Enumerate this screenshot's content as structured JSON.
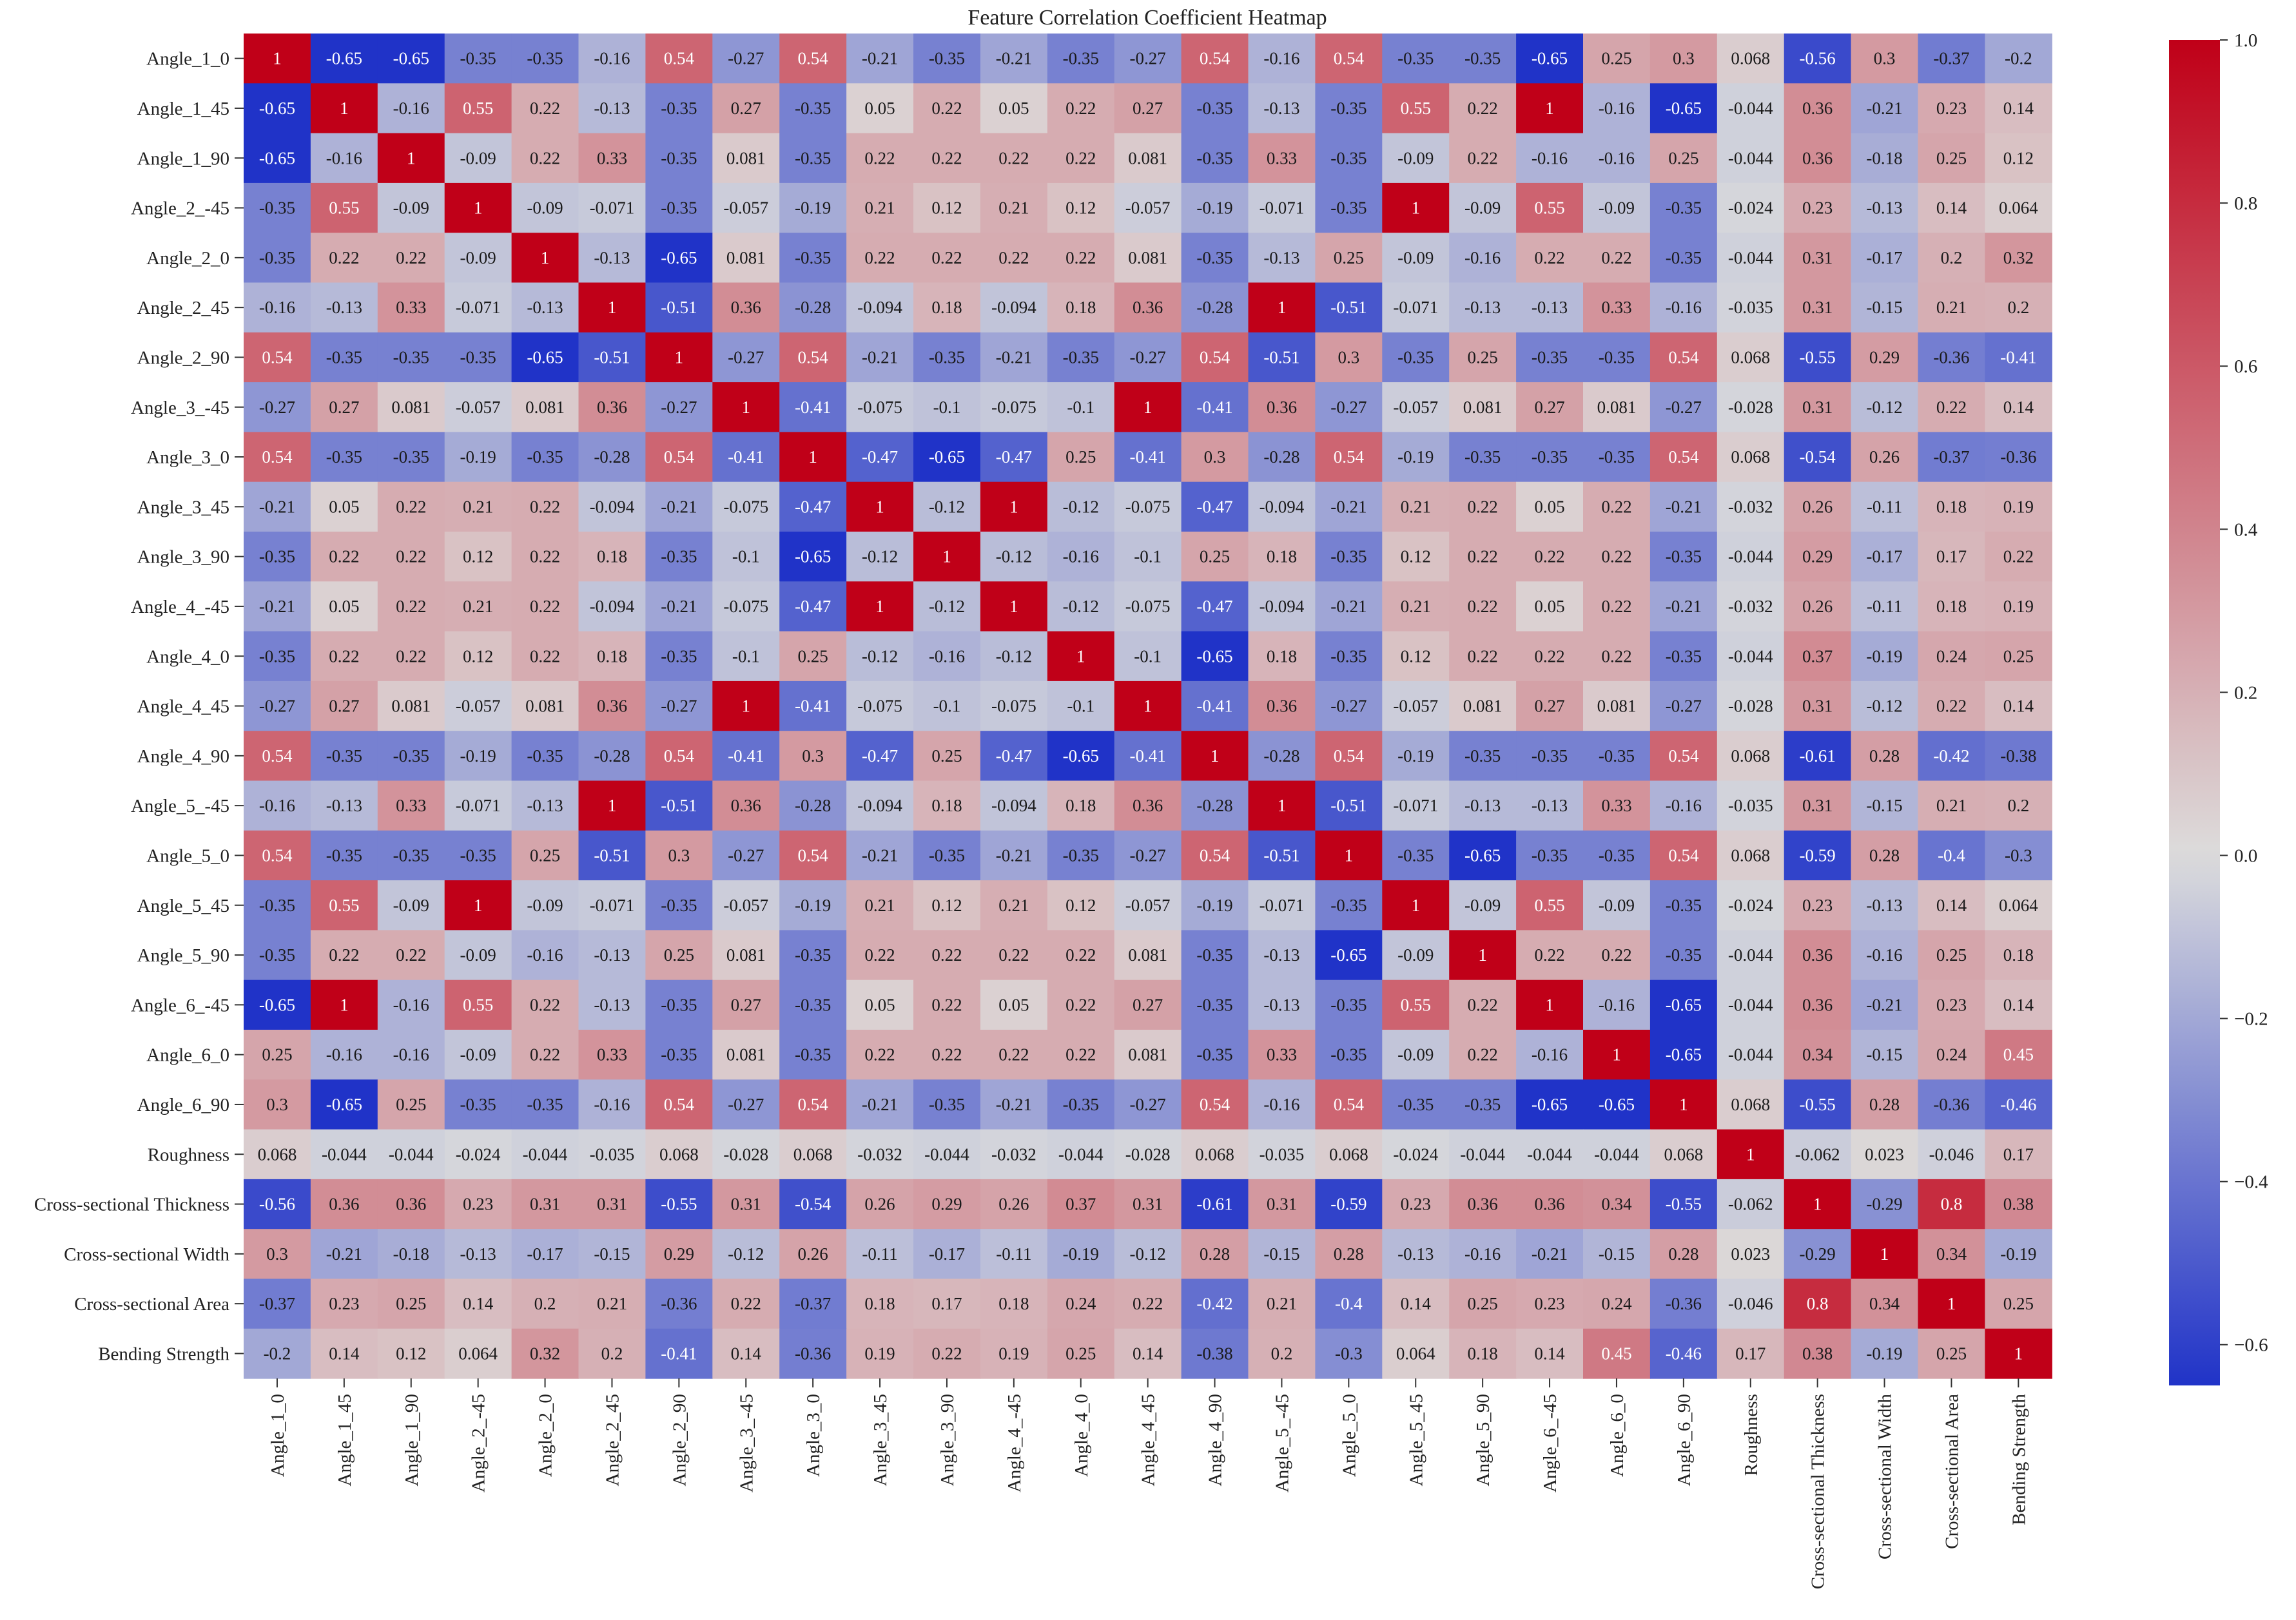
{
  "chart_data": {
    "type": "heatmap",
    "title": "Feature Correlation Coefficient Heatmap",
    "xlabel": "",
    "ylabel": "",
    "labels": [
      "Angle_1_0",
      "Angle_1_45",
      "Angle_1_90",
      "Angle_2_-45",
      "Angle_2_0",
      "Angle_2_45",
      "Angle_2_90",
      "Angle_3_-45",
      "Angle_3_0",
      "Angle_3_45",
      "Angle_3_90",
      "Angle_4_-45",
      "Angle_4_0",
      "Angle_4_45",
      "Angle_4_90",
      "Angle_5_-45",
      "Angle_5_0",
      "Angle_5_45",
      "Angle_5_90",
      "Angle_6_-45",
      "Angle_6_0",
      "Angle_6_90",
      "Roughness",
      "Cross-sectional Thickness",
      "Cross-sectional Width",
      "Cross-sectional Area",
      "Bending Strength"
    ],
    "matrix": [
      [
        "1",
        "-0.65",
        "-0.65",
        "-0.35",
        "-0.35",
        "-0.16",
        "0.54",
        "-0.27",
        "0.54",
        "-0.21",
        "-0.35",
        "-0.21",
        "-0.35",
        "-0.27",
        "0.54",
        "-0.16",
        "0.54",
        "-0.35",
        "-0.35",
        "-0.65",
        "0.25",
        "0.3",
        "0.068",
        "-0.56",
        "0.3",
        "-0.37",
        "-0.2"
      ],
      [
        "-0.65",
        "1",
        "-0.16",
        "0.55",
        "0.22",
        "-0.13",
        "-0.35",
        "0.27",
        "-0.35",
        "0.05",
        "0.22",
        "0.05",
        "0.22",
        "0.27",
        "-0.35",
        "-0.13",
        "-0.35",
        "0.55",
        "0.22",
        "1",
        "-0.16",
        "-0.65",
        "-0.044",
        "0.36",
        "-0.21",
        "0.23",
        "0.14"
      ],
      [
        "-0.65",
        "-0.16",
        "1",
        "-0.09",
        "0.22",
        "0.33",
        "-0.35",
        "0.081",
        "-0.35",
        "0.22",
        "0.22",
        "0.22",
        "0.22",
        "0.081",
        "-0.35",
        "0.33",
        "-0.35",
        "-0.09",
        "0.22",
        "-0.16",
        "-0.16",
        "0.25",
        "-0.044",
        "0.36",
        "-0.18",
        "0.25",
        "0.12"
      ],
      [
        "-0.35",
        "0.55",
        "-0.09",
        "1",
        "-0.09",
        "-0.071",
        "-0.35",
        "-0.057",
        "-0.19",
        "0.21",
        "0.12",
        "0.21",
        "0.12",
        "-0.057",
        "-0.19",
        "-0.071",
        "-0.35",
        "1",
        "-0.09",
        "0.55",
        "-0.09",
        "-0.35",
        "-0.024",
        "0.23",
        "-0.13",
        "0.14",
        "0.064"
      ],
      [
        "-0.35",
        "0.22",
        "0.22",
        "-0.09",
        "1",
        "-0.13",
        "-0.65",
        "0.081",
        "-0.35",
        "0.22",
        "0.22",
        "0.22",
        "0.22",
        "0.081",
        "-0.35",
        "-0.13",
        "0.25",
        "-0.09",
        "-0.16",
        "0.22",
        "0.22",
        "-0.35",
        "-0.044",
        "0.31",
        "-0.17",
        "0.2",
        "0.32"
      ],
      [
        "-0.16",
        "-0.13",
        "0.33",
        "-0.071",
        "-0.13",
        "1",
        "-0.51",
        "0.36",
        "-0.28",
        "-0.094",
        "0.18",
        "-0.094",
        "0.18",
        "0.36",
        "-0.28",
        "1",
        "-0.51",
        "-0.071",
        "-0.13",
        "-0.13",
        "0.33",
        "-0.16",
        "-0.035",
        "0.31",
        "-0.15",
        "0.21",
        "0.2"
      ],
      [
        "0.54",
        "-0.35",
        "-0.35",
        "-0.35",
        "-0.65",
        "-0.51",
        "1",
        "-0.27",
        "0.54",
        "-0.21",
        "-0.35",
        "-0.21",
        "-0.35",
        "-0.27",
        "0.54",
        "-0.51",
        "0.3",
        "-0.35",
        "0.25",
        "-0.35",
        "-0.35",
        "0.54",
        "0.068",
        "-0.55",
        "0.29",
        "-0.36",
        "-0.41"
      ],
      [
        "-0.27",
        "0.27",
        "0.081",
        "-0.057",
        "0.081",
        "0.36",
        "-0.27",
        "1",
        "-0.41",
        "-0.075",
        "-0.1",
        "-0.075",
        "-0.1",
        "1",
        "-0.41",
        "0.36",
        "-0.27",
        "-0.057",
        "0.081",
        "0.27",
        "0.081",
        "-0.27",
        "-0.028",
        "0.31",
        "-0.12",
        "0.22",
        "0.14"
      ],
      [
        "0.54",
        "-0.35",
        "-0.35",
        "-0.19",
        "-0.35",
        "-0.28",
        "0.54",
        "-0.41",
        "1",
        "-0.47",
        "-0.65",
        "-0.47",
        "0.25",
        "-0.41",
        "0.3",
        "-0.28",
        "0.54",
        "-0.19",
        "-0.35",
        "-0.35",
        "-0.35",
        "0.54",
        "0.068",
        "-0.54",
        "0.26",
        "-0.37",
        "-0.36"
      ],
      [
        "-0.21",
        "0.05",
        "0.22",
        "0.21",
        "0.22",
        "-0.094",
        "-0.21",
        "-0.075",
        "-0.47",
        "1",
        "-0.12",
        "1",
        "-0.12",
        "-0.075",
        "-0.47",
        "-0.094",
        "-0.21",
        "0.21",
        "0.22",
        "0.05",
        "0.22",
        "-0.21",
        "-0.032",
        "0.26",
        "-0.11",
        "0.18",
        "0.19"
      ],
      [
        "-0.35",
        "0.22",
        "0.22",
        "0.12",
        "0.22",
        "0.18",
        "-0.35",
        "-0.1",
        "-0.65",
        "-0.12",
        "1",
        "-0.12",
        "-0.16",
        "-0.1",
        "0.25",
        "0.18",
        "-0.35",
        "0.12",
        "0.22",
        "0.22",
        "0.22",
        "-0.35",
        "-0.044",
        "0.29",
        "-0.17",
        "0.17",
        "0.22"
      ],
      [
        "-0.21",
        "0.05",
        "0.22",
        "0.21",
        "0.22",
        "-0.094",
        "-0.21",
        "-0.075",
        "-0.47",
        "1",
        "-0.12",
        "1",
        "-0.12",
        "-0.075",
        "-0.47",
        "-0.094",
        "-0.21",
        "0.21",
        "0.22",
        "0.05",
        "0.22",
        "-0.21",
        "-0.032",
        "0.26",
        "-0.11",
        "0.18",
        "0.19"
      ],
      [
        "-0.35",
        "0.22",
        "0.22",
        "0.12",
        "0.22",
        "0.18",
        "-0.35",
        "-0.1",
        "0.25",
        "-0.12",
        "-0.16",
        "-0.12",
        "1",
        "-0.1",
        "-0.65",
        "0.18",
        "-0.35",
        "0.12",
        "0.22",
        "0.22",
        "0.22",
        "-0.35",
        "-0.044",
        "0.37",
        "-0.19",
        "0.24",
        "0.25"
      ],
      [
        "-0.27",
        "0.27",
        "0.081",
        "-0.057",
        "0.081",
        "0.36",
        "-0.27",
        "1",
        "-0.41",
        "-0.075",
        "-0.1",
        "-0.075",
        "-0.1",
        "1",
        "-0.41",
        "0.36",
        "-0.27",
        "-0.057",
        "0.081",
        "0.27",
        "0.081",
        "-0.27",
        "-0.028",
        "0.31",
        "-0.12",
        "0.22",
        "0.14"
      ],
      [
        "0.54",
        "-0.35",
        "-0.35",
        "-0.19",
        "-0.35",
        "-0.28",
        "0.54",
        "-0.41",
        "0.3",
        "-0.47",
        "0.25",
        "-0.47",
        "-0.65",
        "-0.41",
        "1",
        "-0.28",
        "0.54",
        "-0.19",
        "-0.35",
        "-0.35",
        "-0.35",
        "0.54",
        "0.068",
        "-0.61",
        "0.28",
        "-0.42",
        "-0.38"
      ],
      [
        "-0.16",
        "-0.13",
        "0.33",
        "-0.071",
        "-0.13",
        "1",
        "-0.51",
        "0.36",
        "-0.28",
        "-0.094",
        "0.18",
        "-0.094",
        "0.18",
        "0.36",
        "-0.28",
        "1",
        "-0.51",
        "-0.071",
        "-0.13",
        "-0.13",
        "0.33",
        "-0.16",
        "-0.035",
        "0.31",
        "-0.15",
        "0.21",
        "0.2"
      ],
      [
        "0.54",
        "-0.35",
        "-0.35",
        "-0.35",
        "0.25",
        "-0.51",
        "0.3",
        "-0.27",
        "0.54",
        "-0.21",
        "-0.35",
        "-0.21",
        "-0.35",
        "-0.27",
        "0.54",
        "-0.51",
        "1",
        "-0.35",
        "-0.65",
        "-0.35",
        "-0.35",
        "0.54",
        "0.068",
        "-0.59",
        "0.28",
        "-0.4",
        "-0.3"
      ],
      [
        "-0.35",
        "0.55",
        "-0.09",
        "1",
        "-0.09",
        "-0.071",
        "-0.35",
        "-0.057",
        "-0.19",
        "0.21",
        "0.12",
        "0.21",
        "0.12",
        "-0.057",
        "-0.19",
        "-0.071",
        "-0.35",
        "1",
        "-0.09",
        "0.55",
        "-0.09",
        "-0.35",
        "-0.024",
        "0.23",
        "-0.13",
        "0.14",
        "0.064"
      ],
      [
        "-0.35",
        "0.22",
        "0.22",
        "-0.09",
        "-0.16",
        "-0.13",
        "0.25",
        "0.081",
        "-0.35",
        "0.22",
        "0.22",
        "0.22",
        "0.22",
        "0.081",
        "-0.35",
        "-0.13",
        "-0.65",
        "-0.09",
        "1",
        "0.22",
        "0.22",
        "-0.35",
        "-0.044",
        "0.36",
        "-0.16",
        "0.25",
        "0.18"
      ],
      [
        "-0.65",
        "1",
        "-0.16",
        "0.55",
        "0.22",
        "-0.13",
        "-0.35",
        "0.27",
        "-0.35",
        "0.05",
        "0.22",
        "0.05",
        "0.22",
        "0.27",
        "-0.35",
        "-0.13",
        "-0.35",
        "0.55",
        "0.22",
        "1",
        "-0.16",
        "-0.65",
        "-0.044",
        "0.36",
        "-0.21",
        "0.23",
        "0.14"
      ],
      [
        "0.25",
        "-0.16",
        "-0.16",
        "-0.09",
        "0.22",
        "0.33",
        "-0.35",
        "0.081",
        "-0.35",
        "0.22",
        "0.22",
        "0.22",
        "0.22",
        "0.081",
        "-0.35",
        "0.33",
        "-0.35",
        "-0.09",
        "0.22",
        "-0.16",
        "1",
        "-0.65",
        "-0.044",
        "0.34",
        "-0.15",
        "0.24",
        "0.45"
      ],
      [
        "0.3",
        "-0.65",
        "0.25",
        "-0.35",
        "-0.35",
        "-0.16",
        "0.54",
        "-0.27",
        "0.54",
        "-0.21",
        "-0.35",
        "-0.21",
        "-0.35",
        "-0.27",
        "0.54",
        "-0.16",
        "0.54",
        "-0.35",
        "-0.35",
        "-0.65",
        "-0.65",
        "1",
        "0.068",
        "-0.55",
        "0.28",
        "-0.36",
        "-0.46"
      ],
      [
        "0.068",
        "-0.044",
        "-0.044",
        "-0.024",
        "-0.044",
        "-0.035",
        "0.068",
        "-0.028",
        "0.068",
        "-0.032",
        "-0.044",
        "-0.032",
        "-0.044",
        "-0.028",
        "0.068",
        "-0.035",
        "0.068",
        "-0.024",
        "-0.044",
        "-0.044",
        "-0.044",
        "0.068",
        "1",
        "-0.062",
        "0.023",
        "-0.046",
        "0.17"
      ],
      [
        "-0.56",
        "0.36",
        "0.36",
        "0.23",
        "0.31",
        "0.31",
        "-0.55",
        "0.31",
        "-0.54",
        "0.26",
        "0.29",
        "0.26",
        "0.37",
        "0.31",
        "-0.61",
        "0.31",
        "-0.59",
        "0.23",
        "0.36",
        "0.36",
        "0.34",
        "-0.55",
        "-0.062",
        "1",
        "-0.29",
        "0.8",
        "0.38"
      ],
      [
        "0.3",
        "-0.21",
        "-0.18",
        "-0.13",
        "-0.17",
        "-0.15",
        "0.29",
        "-0.12",
        "0.26",
        "-0.11",
        "-0.17",
        "-0.11",
        "-0.19",
        "-0.12",
        "0.28",
        "-0.15",
        "0.28",
        "-0.13",
        "-0.16",
        "-0.21",
        "-0.15",
        "0.28",
        "0.023",
        "-0.29",
        "1",
        "0.34",
        "-0.19"
      ],
      [
        "-0.37",
        "0.23",
        "0.25",
        "0.14",
        "0.2",
        "0.21",
        "-0.36",
        "0.22",
        "-0.37",
        "0.18",
        "0.17",
        "0.18",
        "0.24",
        "0.22",
        "-0.42",
        "0.21",
        "-0.4",
        "0.14",
        "0.25",
        "0.23",
        "0.24",
        "-0.36",
        "-0.046",
        "0.8",
        "0.34",
        "1",
        "0.25"
      ],
      [
        "-0.2",
        "0.14",
        "0.12",
        "0.064",
        "0.32",
        "0.2",
        "-0.41",
        "0.14",
        "-0.36",
        "0.19",
        "0.22",
        "0.19",
        "0.25",
        "0.14",
        "-0.38",
        "0.2",
        "-0.3",
        "0.064",
        "0.18",
        "0.14",
        "0.45",
        "-0.46",
        "0.17",
        "0.38",
        "-0.19",
        "0.25",
        "1"
      ]
    ],
    "vmin": -0.65,
    "vmax": 1.0,
    "colormap": "coolwarm",
    "colorbar": {
      "ticks": [
        1.0,
        0.8,
        0.6,
        0.4,
        0.2,
        0.0,
        -0.2,
        -0.4,
        -0.6
      ],
      "tick_labels": [
        "1.0",
        "0.8",
        "0.6",
        "0.4",
        "0.2",
        "0.0",
        "−0.2",
        "−0.4",
        "−0.6"
      ],
      "placement": "right"
    },
    "colors": {
      "low": "#2033c8",
      "mid": "#dcdcdc",
      "high": "#c00018"
    }
  }
}
